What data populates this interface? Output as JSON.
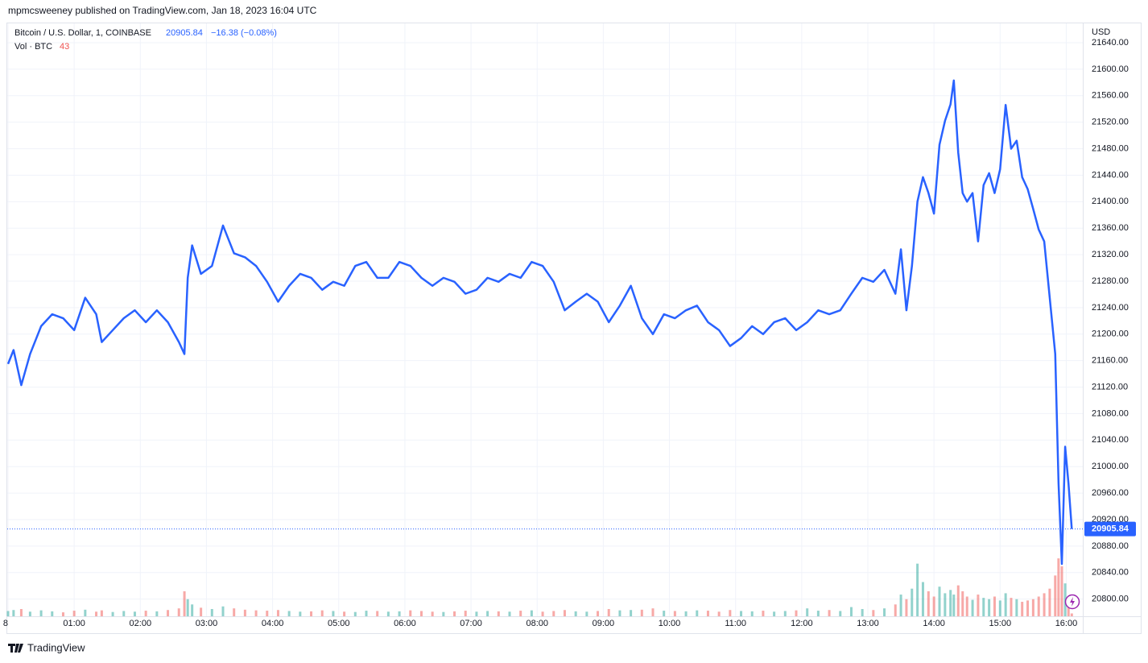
{
  "header": {
    "published": "mpmcsweeney published on TradingView.com, Jan 18, 2023 16:04 UTC",
    "footer": "TradingView"
  },
  "chart_data": {
    "type": "line",
    "title": "Bitcoin / U.S. Dollar, 1, COINBASE",
    "change_label": "−16.38 (−0.08%)",
    "volume_label": "Vol · BTC",
    "y_axis_label": "USD",
    "x": [
      0,
      5,
      12,
      20,
      30,
      40,
      50,
      60,
      70,
      80,
      85,
      95,
      105,
      115,
      125,
      135,
      145,
      155,
      160,
      163,
      167,
      175,
      185,
      195,
      205,
      215,
      225,
      235,
      245,
      255,
      265,
      275,
      285,
      295,
      305,
      315,
      325,
      335,
      345,
      355,
      365,
      375,
      385,
      395,
      405,
      415,
      425,
      435,
      445,
      455,
      465,
      475,
      485,
      495,
      505,
      515,
      525,
      535,
      545,
      555,
      565,
      575,
      585,
      595,
      605,
      615,
      625,
      635,
      645,
      655,
      665,
      675,
      685,
      695,
      705,
      715,
      725,
      735,
      745,
      755,
      765,
      775,
      785,
      795,
      805,
      810,
      815,
      820,
      825,
      830,
      835,
      840,
      845,
      850,
      855,
      858,
      862,
      866,
      870,
      875,
      880,
      885,
      890,
      895,
      900,
      905,
      910,
      915,
      920,
      925,
      930,
      935,
      940,
      945,
      950,
      953,
      956,
      959,
      962,
      965
    ],
    "series": [
      {
        "name": "Bitcoin / U.S. Dollar",
        "color": "#2962ff",
        "values": [
          21155,
          21176,
          21123,
          21170,
          21212,
          21230,
          21224,
          21206,
          21255,
          21230,
          21188,
          21206,
          21224,
          21236,
          21218,
          21236,
          21218,
          21188,
          21170,
          21285,
          21334,
          21291,
          21303,
          21364,
          21322,
          21316,
          21303,
          21279,
          21249,
          21273,
          21291,
          21285,
          21267,
          21279,
          21273,
          21303,
          21309,
          21285,
          21285,
          21309,
          21303,
          21285,
          21273,
          21285,
          21279,
          21261,
          21267,
          21285,
          21279,
          21291,
          21285,
          21309,
          21303,
          21279,
          21236,
          21249,
          21261,
          21249,
          21218,
          21243,
          21273,
          21224,
          21200,
          21230,
          21224,
          21236,
          21243,
          21218,
          21206,
          21182,
          21194,
          21212,
          21200,
          21218,
          21224,
          21206,
          21218,
          21236,
          21230,
          21236,
          21261,
          21285,
          21279,
          21297,
          21261,
          21328,
          21236,
          21303,
          21400,
          21437,
          21413,
          21382,
          21486,
          21522,
          21547,
          21583,
          21474,
          21413,
          21400,
          21413,
          21340,
          21425,
          21443,
          21413,
          21449,
          21546,
          21480,
          21492,
          21437,
          21419,
          21389,
          21358,
          21340,
          21255,
          21170,
          20975,
          20853,
          21030,
          20975,
          20905.84
        ]
      },
      {
        "name": "Vol",
        "axis": "y2",
        "color": "#26a69a",
        "down_color": "#ef5350",
        "values": [
          80,
          95,
          110,
          70,
          90,
          75,
          60,
          85,
          100,
          70,
          90,
          65,
          80,
          70,
          85,
          75,
          95,
          120,
          380,
          260,
          180,
          130,
          110,
          150,
          120,
          100,
          90,
          85,
          95,
          80,
          70,
          75,
          90,
          80,
          70,
          65,
          85,
          80,
          70,
          75,
          90,
          80,
          70,
          65,
          75,
          85,
          70,
          80,
          75,
          70,
          85,
          90,
          70,
          80,
          95,
          75,
          70,
          80,
          110,
          90,
          95,
          100,
          120,
          85,
          80,
          75,
          90,
          85,
          70,
          95,
          80,
          75,
          85,
          70,
          80,
          90,
          120,
          85,
          95,
          80,
          140,
          110,
          95,
          120,
          180,
          330,
          260,
          420,
          800,
          520,
          380,
          300,
          450,
          350,
          400,
          330,
          470,
          380,
          300,
          250,
          330,
          280,
          260,
          300,
          240,
          350,
          280,
          260,
          220,
          240,
          260,
          300,
          350,
          420,
          620,
          880,
          760,
          500,
          300,
          43
        ]
      }
    ],
    "xlim": [
      0,
      975
    ],
    "xticks": [
      {
        "value": 0,
        "label": "8"
      },
      {
        "value": 60,
        "label": "01:00"
      },
      {
        "value": 120,
        "label": "02:00"
      },
      {
        "value": 180,
        "label": "03:00"
      },
      {
        "value": 240,
        "label": "04:00"
      },
      {
        "value": 300,
        "label": "05:00"
      },
      {
        "value": 360,
        "label": "06:00"
      },
      {
        "value": 420,
        "label": "07:00"
      },
      {
        "value": 480,
        "label": "08:00"
      },
      {
        "value": 540,
        "label": "09:00"
      },
      {
        "value": 600,
        "label": "10:00"
      },
      {
        "value": 660,
        "label": "11:00"
      },
      {
        "value": 720,
        "label": "12:00"
      },
      {
        "value": 780,
        "label": "13:00"
      },
      {
        "value": 840,
        "label": "14:00"
      },
      {
        "value": 900,
        "label": "15:00"
      },
      {
        "value": 960,
        "label": "16:00"
      }
    ],
    "ylim": [
      20774,
      21668
    ],
    "yticks": [
      {
        "value": 20800,
        "label": "20800.00"
      },
      {
        "value": 20840,
        "label": "20840.00"
      },
      {
        "value": 20880,
        "label": "20880.00"
      },
      {
        "value": 20920,
        "label": "20920.00"
      },
      {
        "value": 20960,
        "label": "20960.00"
      },
      {
        "value": 21000,
        "label": "21000.00"
      },
      {
        "value": 21040,
        "label": "21040.00"
      },
      {
        "value": 21080,
        "label": "21080.00"
      },
      {
        "value": 21120,
        "label": "21120.00"
      },
      {
        "value": 21160,
        "label": "21160.00"
      },
      {
        "value": 21200,
        "label": "21200.00"
      },
      {
        "value": 21240,
        "label": "21240.00"
      },
      {
        "value": 21280,
        "label": "21280.00"
      },
      {
        "value": 21320,
        "label": "21320.00"
      },
      {
        "value": 21360,
        "label": "21360.00"
      },
      {
        "value": 21400,
        "label": "21400.00"
      },
      {
        "value": 21440,
        "label": "21440.00"
      },
      {
        "value": 21480,
        "label": "21480.00"
      },
      {
        "value": 21520,
        "label": "21520.00"
      },
      {
        "value": 21560,
        "label": "21560.00"
      },
      {
        "value": 21600,
        "label": "21600.00"
      },
      {
        "value": 21640,
        "label": "21640.00"
      }
    ],
    "y2lim": [
      0,
      9000
    ],
    "grid": true
  }
}
